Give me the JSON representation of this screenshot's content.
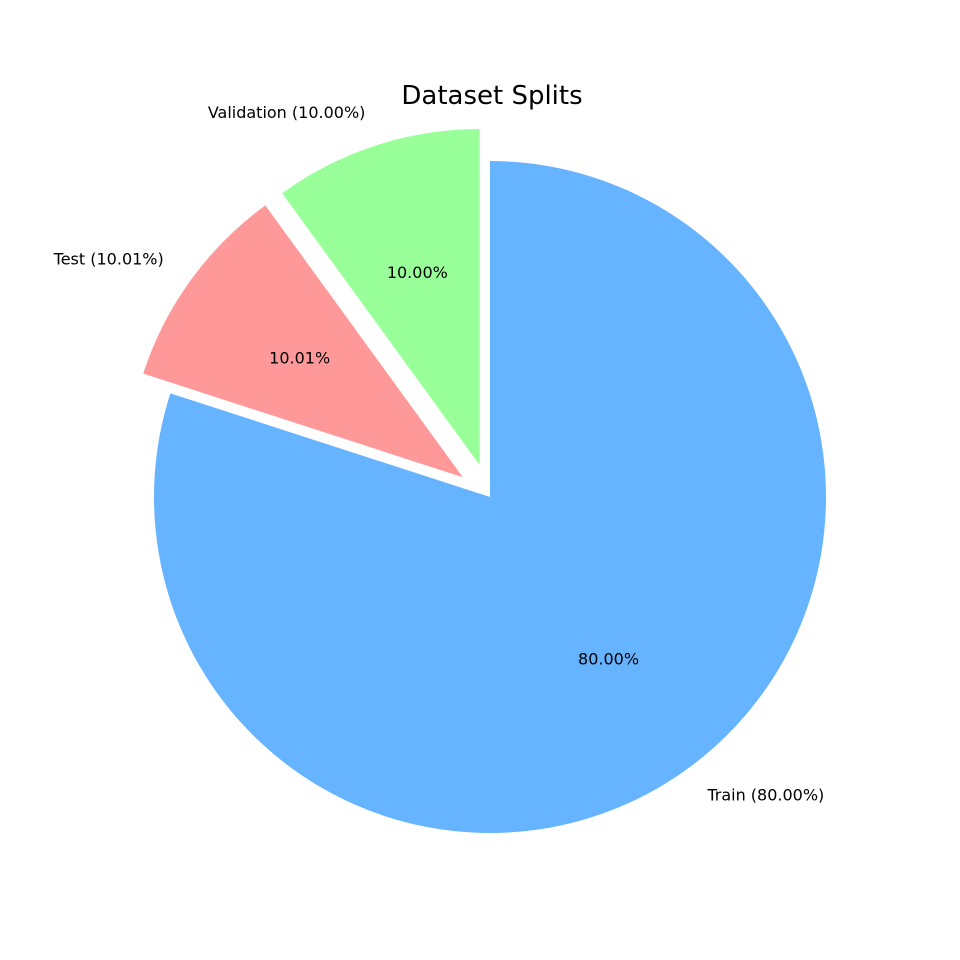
{
  "chart_data": {
    "type": "pie",
    "title": "Dataset Splits",
    "start_angle_deg": 90,
    "direction": "clockwise",
    "slices": [
      {
        "name": "Train",
        "value": 80.0,
        "label": "Train (80.00%)",
        "pct_label": "80.00%",
        "color": "#66b3ff",
        "exploded": false
      },
      {
        "name": "Test",
        "value": 10.01,
        "label": "Test (10.01%)",
        "pct_label": "10.01%",
        "color": "#ff9999",
        "exploded": true
      },
      {
        "name": "Validation",
        "value": 10.0,
        "label": "Validation (10.00%)",
        "pct_label": "10.00%",
        "color": "#99ff99",
        "exploded": true
      }
    ]
  }
}
